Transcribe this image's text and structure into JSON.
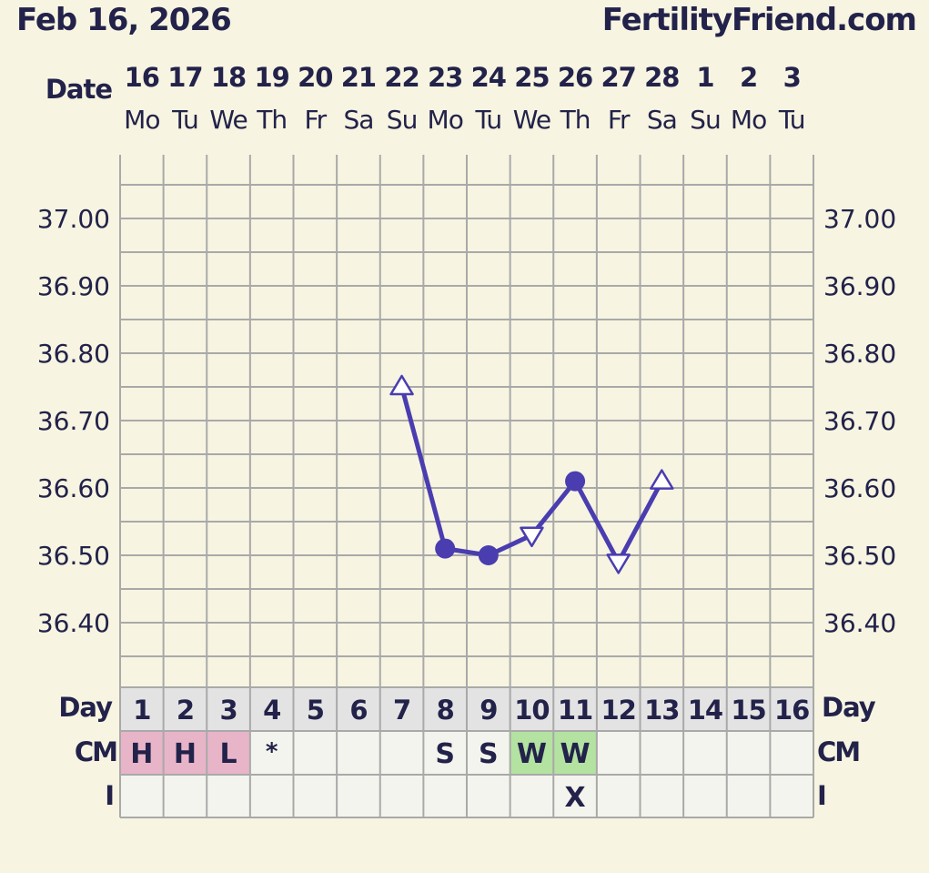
{
  "header": {
    "date": "Feb 16, 2026",
    "site": "FertilityFriend.com"
  },
  "labels": {
    "date": "Date",
    "day": "Day",
    "cm": "CM",
    "intercourse": "I"
  },
  "colors": {
    "background": "#f7f4e1",
    "grid": "#a9a9a9",
    "line": "#4a3db0",
    "text": "#22224a",
    "row_fill": "#f4f4ee",
    "day_row_fill": "#e3e3e3",
    "cm_pink": "#e8b4c8",
    "cm_green": "#b3e2a1"
  },
  "chart_data": {
    "type": "line",
    "ylim": [
      36.33,
      37.1
    ],
    "y_ticks": [
      "37.00",
      "36.90",
      "36.80",
      "36.70",
      "36.60",
      "36.50",
      "36.40"
    ],
    "dates": [
      "16",
      "17",
      "18",
      "19",
      "20",
      "21",
      "22",
      "23",
      "24",
      "25",
      "26",
      "27",
      "28",
      "1",
      "2",
      "3"
    ],
    "weekdays": [
      "Mo",
      "Tu",
      "We",
      "Th",
      "Fr",
      "Sa",
      "Su",
      "Mo",
      "Tu",
      "We",
      "Th",
      "Fr",
      "Sa",
      "Su",
      "Mo",
      "Tu"
    ],
    "cycle_days": [
      "1",
      "2",
      "3",
      "4",
      "5",
      "6",
      "7",
      "8",
      "9",
      "10",
      "11",
      "12",
      "13",
      "14",
      "15",
      "16"
    ],
    "temperatures": [
      {
        "day": 7,
        "value": 36.75,
        "marker": "triangle-up"
      },
      {
        "day": 8,
        "value": 36.51,
        "marker": "circle"
      },
      {
        "day": 9,
        "value": 36.5,
        "marker": "circle"
      },
      {
        "day": 10,
        "value": 36.53,
        "marker": "triangle-down"
      },
      {
        "day": 11,
        "value": 36.61,
        "marker": "circle"
      },
      {
        "day": 12,
        "value": 36.49,
        "marker": "triangle-down"
      },
      {
        "day": 13,
        "value": 36.61,
        "marker": "triangle-up"
      }
    ],
    "cm": [
      "H",
      "H",
      "L",
      "*",
      "",
      "",
      "",
      "S",
      "S",
      "W",
      "W",
      "",
      "",
      "",
      "",
      ""
    ],
    "cm_colors": [
      "pink",
      "pink",
      "pink",
      "",
      "",
      "",
      "",
      "",
      "",
      "green",
      "green",
      "",
      "",
      "",
      "",
      ""
    ],
    "intercourse": [
      "",
      "",
      "",
      "",
      "",
      "",
      "",
      "",
      "",
      "",
      "X",
      "",
      "",
      "",
      "",
      ""
    ]
  }
}
